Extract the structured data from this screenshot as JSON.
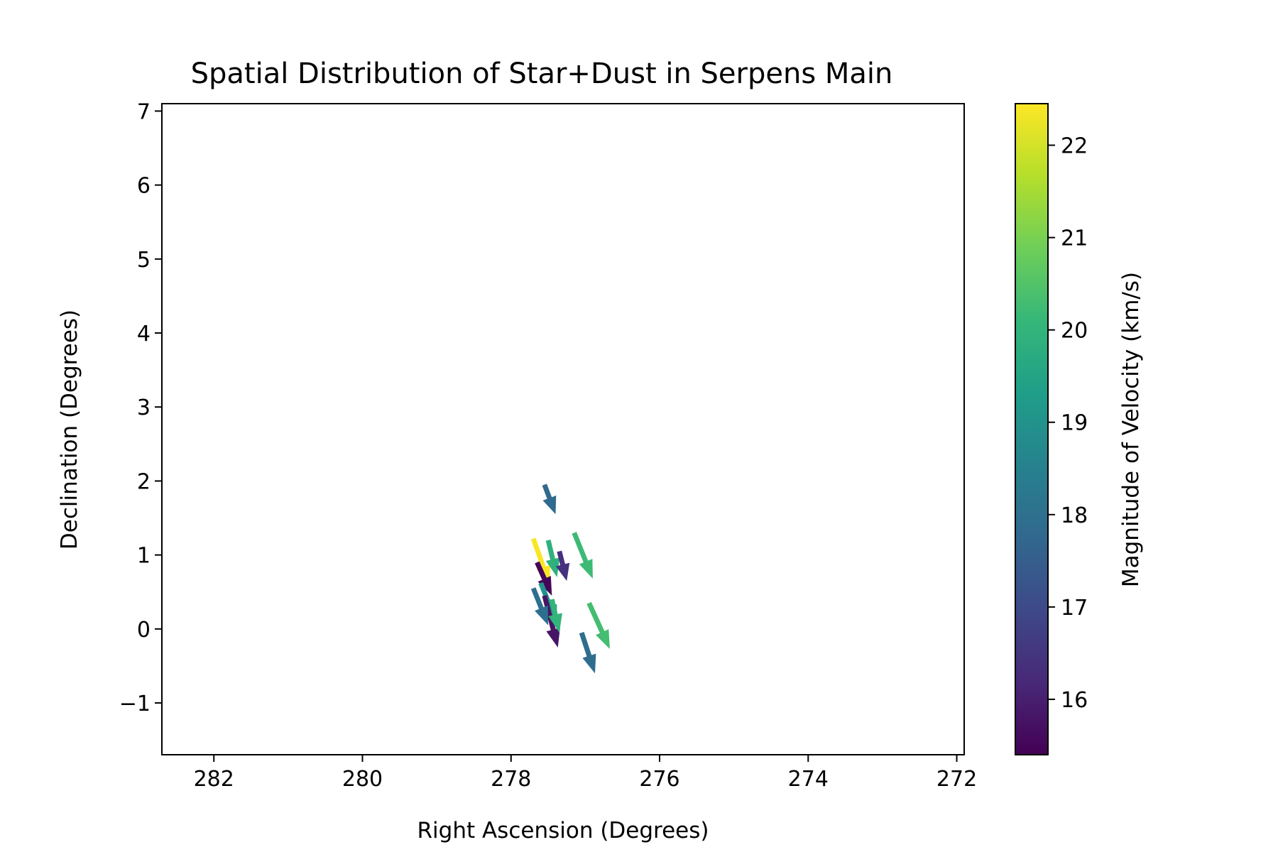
{
  "chart_data": {
    "type": "quiver",
    "title": "Spatial Distribution of Star+Dust in Serpens Main",
    "xlabel": "Right Ascension (Degrees)",
    "ylabel": "Declination (Degrees)",
    "xlim": [
      282.7,
      271.9
    ],
    "ylim": [
      -1.7,
      7.1
    ],
    "x_inverted": true,
    "xticks": [
      282,
      280,
      278,
      276,
      274,
      272
    ],
    "yticks": [
      -1,
      0,
      1,
      2,
      3,
      4,
      5,
      6,
      7
    ],
    "ytick_labels": [
      "−1",
      "0",
      "1",
      "2",
      "3",
      "4",
      "5",
      "6",
      "7"
    ],
    "grid": false,
    "colormap": "viridis",
    "colorbar": {
      "label": "Magnitude of Velocity (km/s)",
      "range": [
        15.4,
        22.45
      ],
      "ticks": [
        16,
        17,
        18,
        19,
        20,
        21,
        22
      ]
    },
    "arrows": [
      {
        "ra": 277.55,
        "dec": 1.95,
        "dra": -0.15,
        "ddec": -0.4,
        "speed": 17.8
      },
      {
        "ra": 277.7,
        "dec": 1.22,
        "dra": -0.22,
        "ddec": -0.62,
        "speed": 22.4
      },
      {
        "ra": 277.5,
        "dec": 1.2,
        "dra": -0.12,
        "ddec": -0.5,
        "speed": 19.9
      },
      {
        "ra": 277.35,
        "dec": 1.05,
        "dra": -0.1,
        "ddec": -0.4,
        "speed": 16.4
      },
      {
        "ra": 277.15,
        "dec": 1.3,
        "dra": -0.25,
        "ddec": -0.62,
        "speed": 20.2
      },
      {
        "ra": 277.65,
        "dec": 0.9,
        "dra": -0.2,
        "ddec": -0.45,
        "speed": 15.5
      },
      {
        "ra": 277.6,
        "dec": 0.62,
        "dra": -0.22,
        "ddec": -0.55,
        "speed": 19.0
      },
      {
        "ra": 277.55,
        "dec": 0.45,
        "dra": -0.18,
        "ddec": -0.7,
        "speed": 15.8
      },
      {
        "ra": 277.7,
        "dec": 0.55,
        "dra": -0.2,
        "ddec": -0.5,
        "speed": 18.0
      },
      {
        "ra": 277.45,
        "dec": 0.4,
        "dra": -0.1,
        "ddec": -0.45,
        "speed": 20.0
      },
      {
        "ra": 276.95,
        "dec": 0.35,
        "dra": -0.28,
        "ddec": -0.62,
        "speed": 20.3
      },
      {
        "ra": 277.05,
        "dec": -0.05,
        "dra": -0.18,
        "ddec": -0.55,
        "speed": 17.9
      }
    ]
  }
}
